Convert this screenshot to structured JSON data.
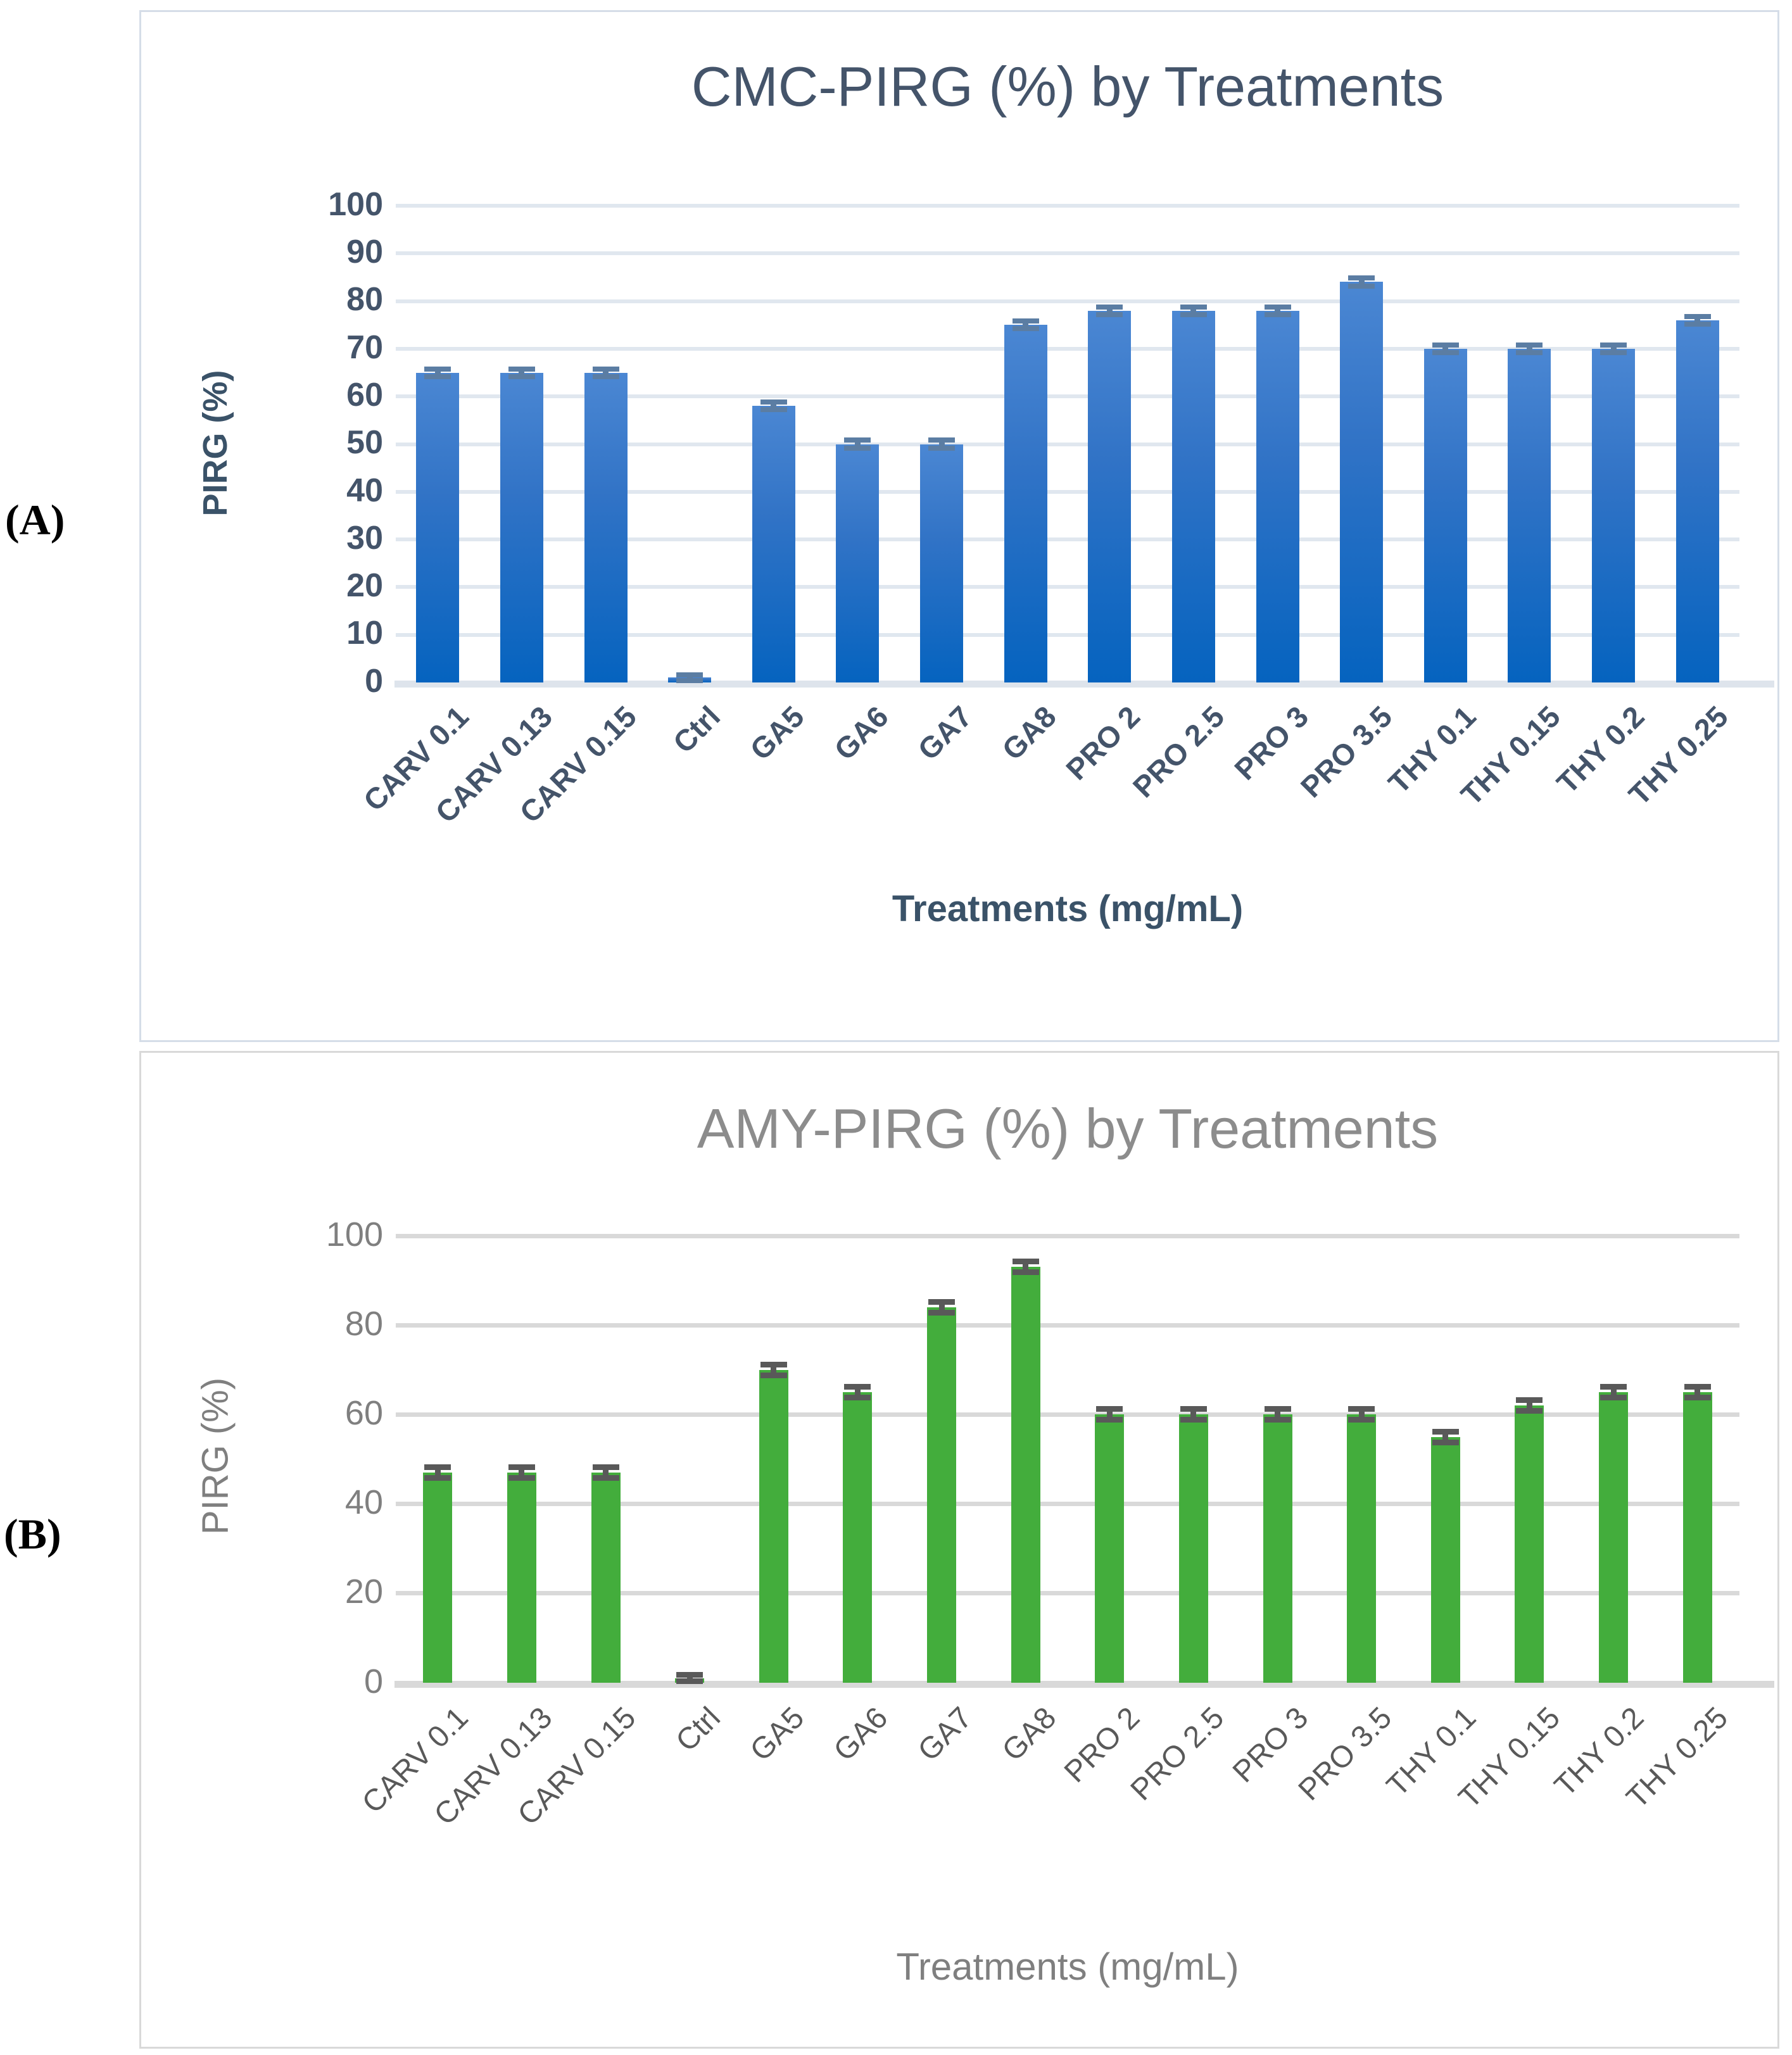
{
  "figure": {
    "panel_a_label": "(A)",
    "panel_b_label": "(B)"
  },
  "chart_data": [
    {
      "type": "bar",
      "title": "CMC-PIRG (%) by Treatments",
      "xlabel": "Treatments (mg/mL)",
      "ylabel": "PIRG (%)",
      "ylim": [
        0,
        100
      ],
      "yticks": [
        0,
        10,
        20,
        30,
        40,
        50,
        60,
        70,
        80,
        90,
        100
      ],
      "grid": true,
      "legend_position": "none",
      "categories": [
        "CARV 0.1",
        "CARV 0.13",
        "CARV 0.15",
        "Ctrl",
        "GA5",
        "GA6",
        "GA7",
        "GA8",
        "PRO 2",
        "PRO 2.5",
        "PRO 3",
        "PRO 3.5",
        "THY 0.1",
        "THY 0.15",
        "THY 0.2",
        "THY 0.25"
      ],
      "values": [
        65,
        65,
        65,
        1,
        58,
        50,
        50,
        75,
        78,
        78,
        78,
        84,
        70,
        70,
        70,
        76
      ],
      "errors": [
        0.8,
        0.8,
        0.8,
        0.6,
        0.8,
        0.8,
        0.8,
        0.8,
        0.8,
        0.8,
        0.8,
        0.8,
        0.8,
        0.8,
        0.8,
        0.8
      ],
      "bar_color_top": "#4b87d3",
      "bar_color_mid": "#3173c6",
      "bar_color_bottom": "#0563bf",
      "error_bar_color": "#5b7da3",
      "title_color": "#44546a",
      "tick_label_color": "#44546a",
      "category_label_color": "#44546a",
      "axis_title_color": "#3a5268",
      "gridline_color": "#e0e7ef",
      "axis_line_color": "#dee4ec"
    },
    {
      "type": "bar",
      "title": "AMY-PIRG (%) by Treatments",
      "xlabel": "Treatments (mg/mL)",
      "ylabel": "PIRG (%)",
      "ylim": [
        0,
        100
      ],
      "yticks": [
        0,
        20,
        40,
        60,
        80,
        100
      ],
      "grid": true,
      "legend_position": "none",
      "categories": [
        "CARV 0.1",
        "CARV 0.13",
        "CARV 0.15",
        "Ctrl",
        "GA5",
        "GA6",
        "GA7",
        "GA8",
        "PRO 2",
        "PRO 2.5",
        "PRO 3",
        "PRO 3.5",
        "THY 0.1",
        "THY 0.15",
        "THY 0.2",
        "THY 0.25"
      ],
      "values": [
        47,
        47,
        47,
        1,
        70,
        65,
        84,
        93,
        60,
        60,
        60,
        60,
        55,
        62,
        65,
        65
      ],
      "errors": [
        1.2,
        1.2,
        1.2,
        0.7,
        1.2,
        1.2,
        1.2,
        1.2,
        1.2,
        1.2,
        1.2,
        1.2,
        1.2,
        1.2,
        1.2,
        1.2
      ],
      "bar_color": "#43ad3c",
      "error_bar_color": "#595959",
      "title_color": "#8c8c8c",
      "tick_label_color": "#7f7f7f",
      "category_label_color": "#595959",
      "axis_title_color": "#7f7f7f",
      "gridline_color": "#d9d9d9",
      "axis_line_color": "#d9d9d9"
    }
  ]
}
